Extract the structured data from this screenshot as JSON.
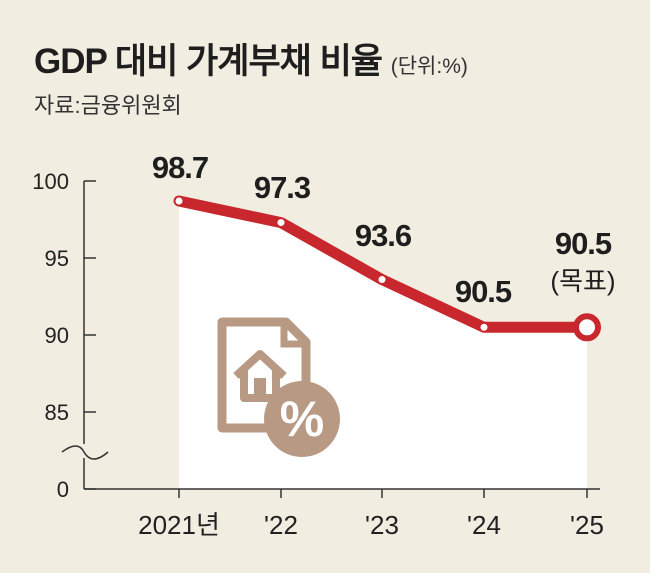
{
  "header": {
    "title": "GDP 대비 가계부채 비율",
    "unit": "(단위:%)",
    "source": "자료:금융위원회"
  },
  "colors": {
    "background": "#f2ede1",
    "plot_area": "#ffffff",
    "line": "#c8282d",
    "icon": "#b89a84"
  },
  "icon": {
    "name": "house-document-percent-icon",
    "glyph": "%"
  },
  "chart_data": {
    "type": "line",
    "title": "GDP 대비 가계부채 비율",
    "xlabel": "",
    "ylabel": "",
    "categories": [
      "2021년",
      "'22",
      "'23",
      "'24",
      "'25"
    ],
    "values": [
      98.7,
      97.3,
      93.6,
      90.5,
      90.5
    ],
    "data_labels": [
      "98.7",
      "97.3",
      "93.6",
      "90.5",
      "90.5"
    ],
    "annotations": [
      {
        "category": "'25",
        "text": "(목표)"
      }
    ],
    "y_ticks": [
      100,
      95,
      90,
      85,
      0
    ],
    "y_tick_labels": [
      "100",
      "95",
      "90",
      "85",
      "0"
    ],
    "y_axis_break": true,
    "ylim": [
      0,
      100
    ],
    "grid": false
  }
}
